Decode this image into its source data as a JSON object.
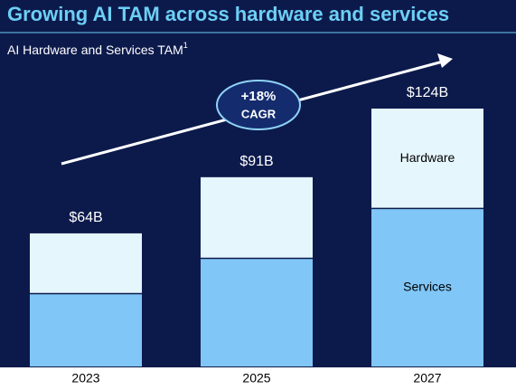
{
  "chart_data": {
    "type": "stacked-bar",
    "title": "Growing AI TAM across hardware and services",
    "subtitle": "AI Hardware and Services TAM",
    "subtitle_footnote": "1",
    "annotation": [
      "+18%",
      "CAGR"
    ],
    "categories": [
      "2023",
      "2025",
      "2027"
    ],
    "series": [
      {
        "name": "Services",
        "color": "#80c6f7",
        "values": [
          35,
          52,
          76
        ]
      },
      {
        "name": "Hardware",
        "color": "#e6f6fd",
        "values": [
          29,
          39,
          48
        ]
      }
    ],
    "totals": {
      "values": [
        64,
        91,
        124
      ],
      "value_labels": [
        "$64B",
        "$91B",
        "$124B"
      ]
    }
  }
}
